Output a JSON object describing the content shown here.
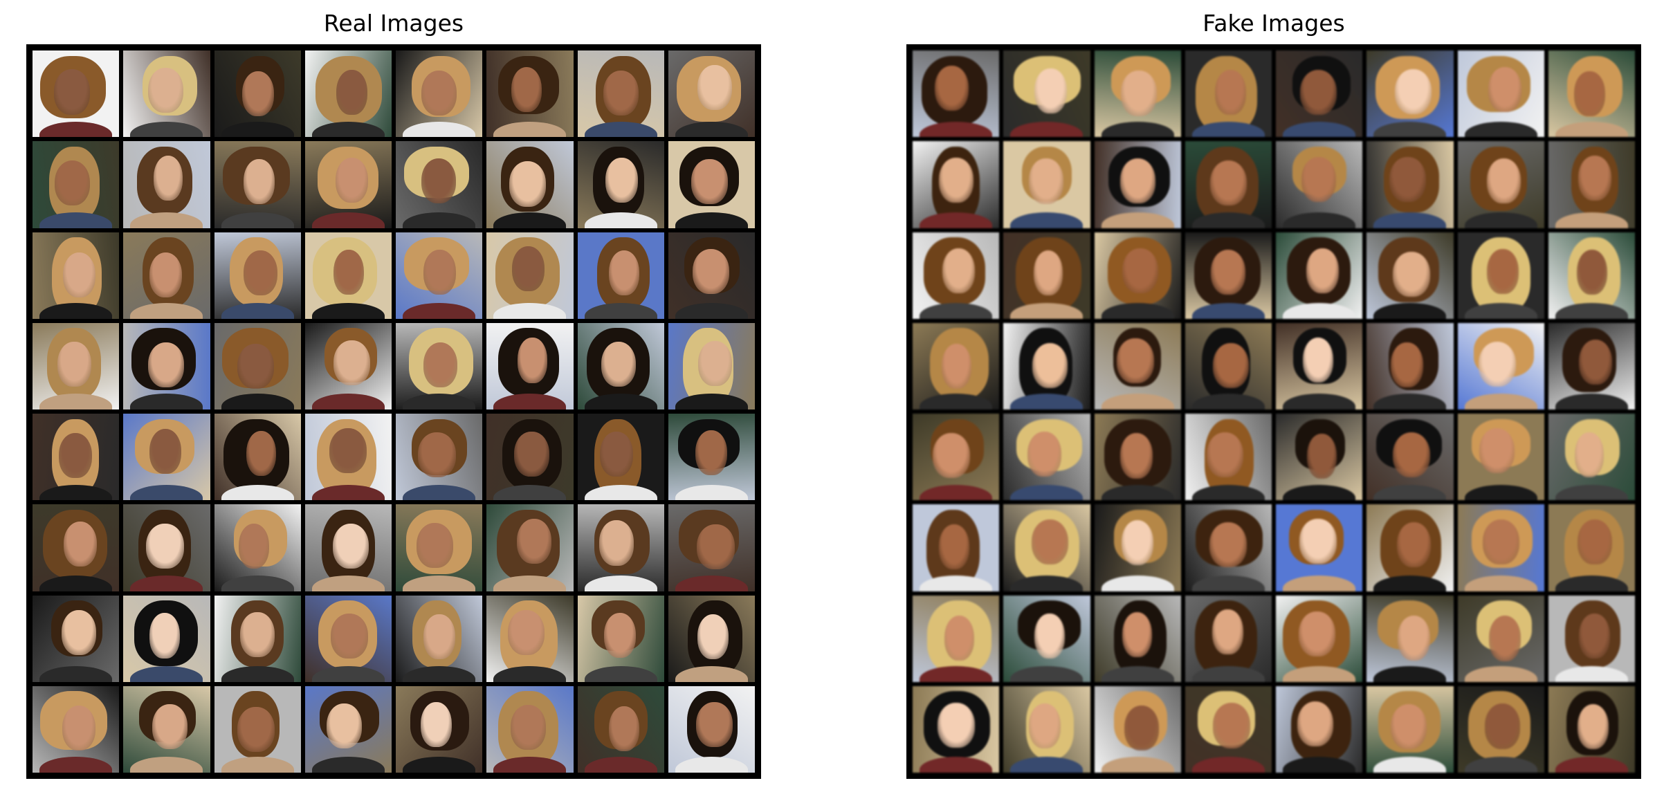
{
  "panels": [
    {
      "key": "real",
      "title": "Real Images"
    },
    {
      "key": "fake",
      "title": "Fake Images"
    }
  ],
  "palettes": {
    "bg": [
      "#f2f2f2",
      "#2a2a2a",
      "#5a78c8",
      "#3d3a2a",
      "#8a7a5a",
      "#1a1a1a",
      "#c0c8d8",
      "#6a6a6a",
      "#d8c8a8",
      "#2e4a3a",
      "#b8b8b8",
      "#403028"
    ],
    "hair": [
      "#1a120c",
      "#3a2412",
      "#6a4420",
      "#b08850",
      "#d8c080",
      "#2a1a10",
      "#8a5a2a",
      "#c89a60",
      "#101010",
      "#5a3a20"
    ],
    "skin": [
      "#e8c0a0",
      "#d8a888",
      "#c89070",
      "#b07858",
      "#8a5a40",
      "#f0d0b8",
      "#a06848",
      "#dcb090"
    ],
    "cloth": [
      "#1a1a1a",
      "#e8e8e8",
      "#3a4a6a",
      "#6a2a2a",
      "#2a2a2a",
      "#c0a080",
      "#404040"
    ]
  }
}
